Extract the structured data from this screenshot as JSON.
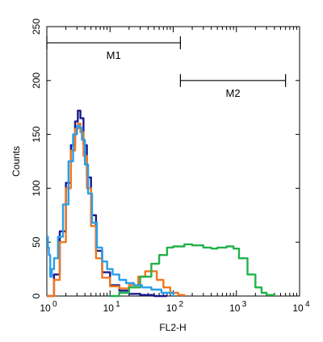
{
  "chart_data": {
    "type": "line",
    "xlabel": "FL2-H",
    "ylabel": "Counts",
    "xscale": "log",
    "xlim": [
      1,
      10000
    ],
    "ylim": [
      0,
      250
    ],
    "x_tick_labels": [
      {
        "base": "10",
        "exp": "0"
      },
      {
        "base": "10",
        "exp": "1"
      },
      {
        "base": "10",
        "exp": "2"
      },
      {
        "base": "10",
        "exp": "3"
      },
      {
        "base": "10",
        "exp": "4"
      }
    ],
    "x_tick_values": [
      1,
      10,
      100,
      1000,
      10000
    ],
    "y_ticks": [
      0,
      50,
      100,
      150,
      200,
      250
    ],
    "markers": [
      {
        "label": "M1",
        "x_start": 1,
        "x_end": 130,
        "y": 235
      },
      {
        "label": "M2",
        "x_start": 130,
        "x_end": 6000,
        "y": 200
      }
    ],
    "series": [
      {
        "color": "#1a1a8c",
        "x": [
          1,
          1.3,
          1.6,
          2.0,
          2.4,
          2.8,
          3.1,
          3.4,
          3.8,
          4.3,
          5.0,
          6.0,
          7.5,
          10,
          14,
          20,
          30,
          50,
          80
        ],
        "y": [
          0,
          20,
          60,
          105,
          140,
          162,
          172,
          165,
          140,
          110,
          75,
          42,
          22,
          10,
          5,
          2,
          1,
          0,
          0
        ]
      },
      {
        "color": "#f07820",
        "x": [
          1,
          1.3,
          1.6,
          2.0,
          2.4,
          2.8,
          3.1,
          3.4,
          3.8,
          4.3,
          5.0,
          6.0,
          7.5,
          10,
          14,
          20,
          28,
          36,
          45,
          55,
          70,
          90,
          120,
          150
        ],
        "y": [
          0,
          15,
          50,
          100,
          135,
          155,
          160,
          152,
          130,
          100,
          65,
          35,
          17,
          9,
          7,
          10,
          18,
          23,
          23,
          15,
          8,
          3,
          1,
          0
        ]
      },
      {
        "color": "#22b14c",
        "x": [
          10,
          14,
          20,
          30,
          45,
          60,
          80,
          100,
          150,
          200,
          300,
          400,
          500,
          700,
          900,
          1100,
          1500,
          2000,
          2500,
          3000,
          4000
        ],
        "y": [
          0,
          3,
          8,
          18,
          30,
          38,
          45,
          46,
          48,
          47,
          45,
          44,
          45,
          46,
          44,
          35,
          20,
          8,
          3,
          1,
          0
        ]
      },
      {
        "color": "#2a9ee8",
        "x": [
          1,
          1.04,
          1.08,
          1.13,
          1.2,
          1.3,
          1.5,
          1.8,
          2.2,
          2.6,
          3.0,
          3.3,
          3.6,
          4.0,
          4.5,
          5.2,
          6.2,
          7.5,
          9,
          11,
          14,
          18,
          24,
          32,
          45,
          65,
          100
        ],
        "y": [
          55,
          45,
          38,
          18,
          25,
          35,
          55,
          85,
          125,
          150,
          158,
          156,
          145,
          122,
          95,
          68,
          45,
          32,
          25,
          20,
          15,
          12,
          10,
          8,
          6,
          3,
          0
        ]
      }
    ]
  }
}
